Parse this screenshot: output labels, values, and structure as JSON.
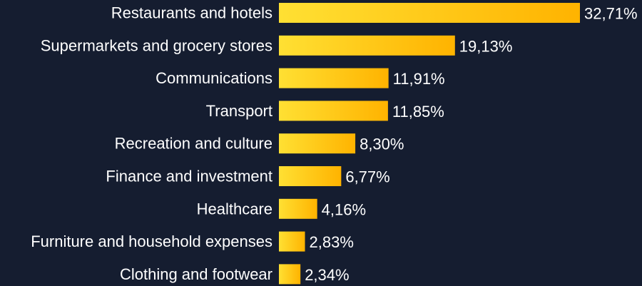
{
  "colors": {
    "background": "#151d30",
    "bar_start": "#ffe033",
    "bar_end": "#ffb300",
    "text": "#ffffff"
  },
  "chart_data": {
    "type": "bar",
    "orientation": "horizontal",
    "categories": [
      "Restaurants and hotels",
      "Supermarkets and grocery stores",
      "Communications",
      "Transport",
      "Recreation and culture",
      "Finance and investment",
      "Healthcare",
      "Furniture and household expenses",
      "Clothing and footwear"
    ],
    "values": [
      32.71,
      19.13,
      11.91,
      11.85,
      8.3,
      6.77,
      4.16,
      2.83,
      2.34
    ],
    "value_labels": [
      "32,71%",
      "19,13%",
      "11,91%",
      "11,85%",
      "8,30%",
      "6,77%",
      "4,16%",
      "2,83%",
      "2,34%"
    ],
    "xlim": [
      0,
      32.71
    ],
    "grid": false,
    "legend": "none"
  }
}
